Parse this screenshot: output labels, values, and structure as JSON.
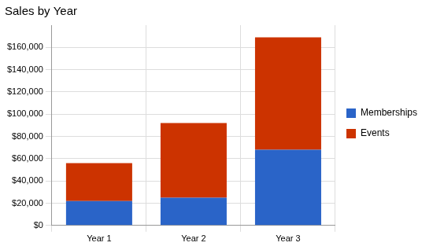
{
  "chart_data": {
    "type": "bar",
    "title": "Sales by Year",
    "categories": [
      "Year 1",
      "Year 2",
      "Year 3"
    ],
    "series": [
      {
        "name": "Memberships",
        "color": "#2a64c8",
        "values": [
          22000,
          25000,
          68000
        ]
      },
      {
        "name": "Events",
        "color": "#cc3300",
        "values": [
          34000,
          67000,
          101000
        ]
      }
    ],
    "stacked": true,
    "ylim": [
      0,
      180000
    ],
    "yticks": [
      {
        "value": 0,
        "label": "$0"
      },
      {
        "value": 20000,
        "label": "$20,000"
      },
      {
        "value": 40000,
        "label": "$40,000"
      },
      {
        "value": 60000,
        "label": "$60,000"
      },
      {
        "value": 80000,
        "label": "$80,000"
      },
      {
        "value": 100000,
        "label": "$100,000"
      },
      {
        "value": 120000,
        "label": "$120,000"
      },
      {
        "value": 140000,
        "label": "$140,000"
      },
      {
        "value": 160000,
        "label": "$160,000"
      }
    ],
    "grid": true,
    "legend": "right"
  }
}
